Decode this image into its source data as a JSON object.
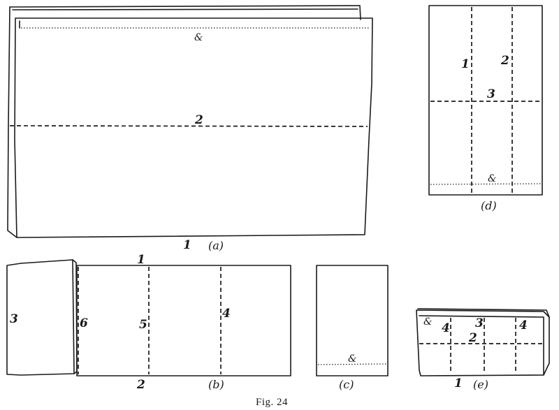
{
  "figure": {
    "caption": "Fig. 24",
    "ornament": "&",
    "panels": {
      "a": {
        "caption": "(a)",
        "labels": {
          "fold_1": "1",
          "fold_2": "2"
        }
      },
      "b": {
        "caption": "(b)",
        "labels": {
          "top_1": "1",
          "bottom_2": "2",
          "flap_3": "3",
          "fold_4": "4",
          "fold_5": "5",
          "fold_6": "6"
        }
      },
      "c": {
        "caption": "(c)"
      },
      "d": {
        "caption": "(d)",
        "labels": {
          "fold_1": "1",
          "fold_2": "2",
          "fold_3": "3"
        }
      },
      "e": {
        "caption": "(e)",
        "labels": {
          "bottom_1": "1",
          "fold_2": "2",
          "fold_3": "3",
          "left_4": "4",
          "right_4": "4"
        }
      }
    }
  }
}
